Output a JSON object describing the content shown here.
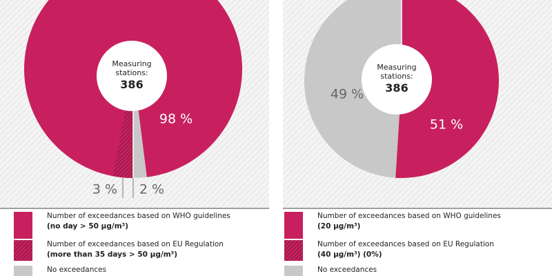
{
  "chart_data": [
    {
      "type": "pie",
      "center_label": "Measuring stations:",
      "center_value": 386,
      "categories": [
        "Number of exceedances based on WHO guidelines",
        "Number of exceedances based on EU Regulation",
        "No exceedances"
      ],
      "category_notes": [
        "(no day > 50 µg/m³)",
        "(more than 35 days > 50 µg/m³)",
        null
      ],
      "values": [
        98,
        3,
        2
      ],
      "value_labels": [
        "98 %",
        "3 %",
        "2 %"
      ],
      "colors": [
        "#c8205e",
        "hatched",
        "#c8c8c8"
      ]
    },
    {
      "type": "pie",
      "center_label": "Measuring stations:",
      "center_value": 386,
      "categories": [
        "Number of exceedances based on WHO guidelines",
        "Number of exceedances based on EU Regulation",
        "No exceedances"
      ],
      "category_notes": [
        "(20 µg/m³)",
        "(40 µg/m³) (0%)",
        null
      ],
      "values": [
        51,
        0,
        49
      ],
      "value_labels": [
        "51 %",
        null,
        "49 %"
      ],
      "colors": [
        "#c8205e",
        "hatched",
        "#c8c8c8"
      ]
    }
  ]
}
